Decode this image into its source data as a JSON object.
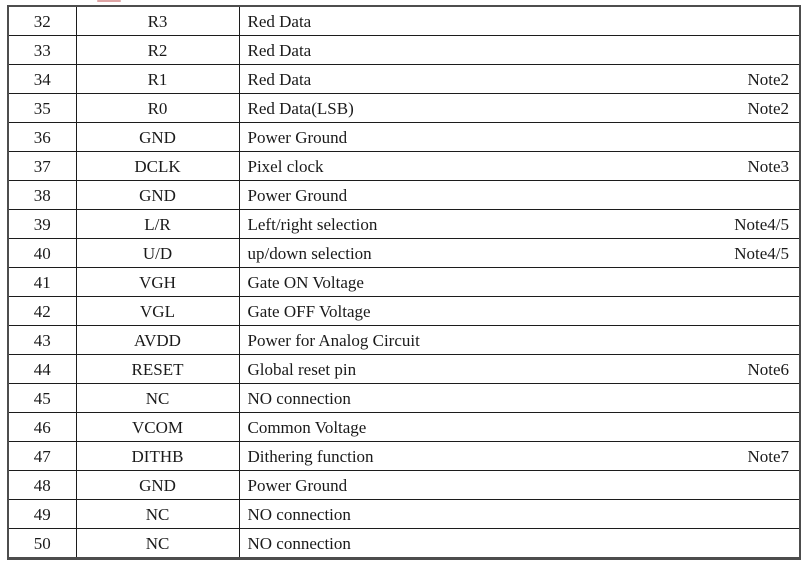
{
  "artifact": {
    "description": "cut-off red text remnant at top edge"
  },
  "pin_table": {
    "columns": [
      "pin_number",
      "symbol",
      "description",
      "note"
    ],
    "rows": [
      {
        "pin": "32",
        "symbol": "R3",
        "description": "Red Data",
        "note": ""
      },
      {
        "pin": "33",
        "symbol": "R2",
        "description": "Red Data",
        "note": ""
      },
      {
        "pin": "34",
        "symbol": "R1",
        "description": "Red Data",
        "note": "Note2"
      },
      {
        "pin": "35",
        "symbol": "R0",
        "description": "Red Data(LSB)",
        "note": "Note2"
      },
      {
        "pin": "36",
        "symbol": "GND",
        "description": "Power Ground",
        "note": ""
      },
      {
        "pin": "37",
        "symbol": "DCLK",
        "description": "Pixel clock",
        "note": "Note3"
      },
      {
        "pin": "38",
        "symbol": "GND",
        "description": "Power Ground",
        "note": ""
      },
      {
        "pin": "39",
        "symbol": "L/R",
        "description": "Left/right selection",
        "note": "Note4/5"
      },
      {
        "pin": "40",
        "symbol": "U/D",
        "description": "up/down selection",
        "note": "Note4/5"
      },
      {
        "pin": "41",
        "symbol": "VGH",
        "description": "Gate ON Voltage",
        "note": ""
      },
      {
        "pin": "42",
        "symbol": "VGL",
        "description": "Gate OFF Voltage",
        "note": ""
      },
      {
        "pin": "43",
        "symbol": "AVDD",
        "description": "Power for Analog Circuit",
        "note": ""
      },
      {
        "pin": "44",
        "symbol": "RESET",
        "description": "Global reset pin",
        "note": "Note6"
      },
      {
        "pin": "45",
        "symbol": "NC",
        "description": "NO connection",
        "note": ""
      },
      {
        "pin": "46",
        "symbol": "VCOM",
        "description": "Common Voltage",
        "note": ""
      },
      {
        "pin": "47",
        "symbol": "DITHB",
        "description": "Dithering function",
        "note": "Note7"
      },
      {
        "pin": "48",
        "symbol": "GND",
        "description": "Power Ground",
        "note": ""
      },
      {
        "pin": "49",
        "symbol": "NC",
        "description": "NO connection",
        "note": ""
      },
      {
        "pin": "50",
        "symbol": "NC",
        "description": "NO connection",
        "note": ""
      }
    ]
  }
}
